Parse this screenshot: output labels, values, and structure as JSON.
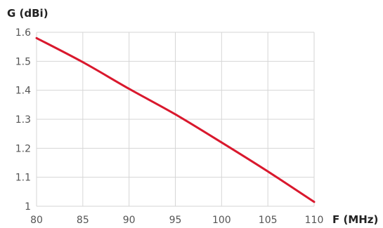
{
  "chart_data": {
    "type": "line",
    "title": "",
    "xlabel": "F (MHz)",
    "ylabel": "G (dBi)",
    "xlim": [
      80,
      110
    ],
    "ylim": [
      1,
      1.6
    ],
    "x_ticks": [
      "80",
      "85",
      "90",
      "95",
      "100",
      "105",
      "110"
    ],
    "y_ticks": [
      "1",
      "1.1",
      "1.2",
      "1.3",
      "1.4",
      "1.5",
      "1.6"
    ],
    "grid": true,
    "series": [
      {
        "color": "#d9182d",
        "x": [
          80,
          85,
          90,
          95,
          100,
          105,
          110
        ],
        "y": [
          1.58,
          1.497,
          1.405,
          1.317,
          1.22,
          1.12,
          1.015
        ]
      }
    ]
  }
}
